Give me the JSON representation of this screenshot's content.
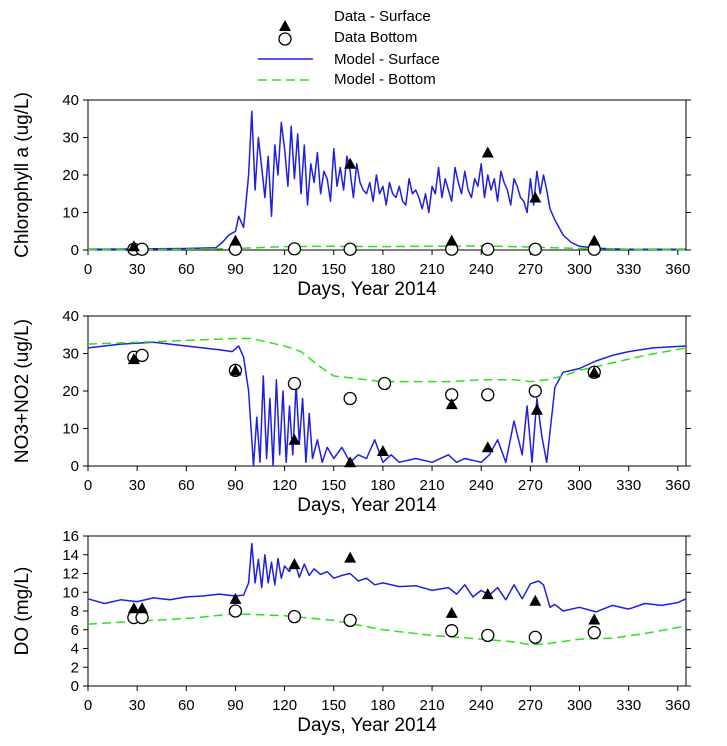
{
  "legend": {
    "placement": "top-center",
    "items": [
      {
        "key": "data_surface",
        "label": "Data - Surface",
        "symbol": "filled-triangle"
      },
      {
        "key": "data_bottom",
        "label": "Data Bottom",
        "symbol": "open-circle"
      },
      {
        "key": "model_surface",
        "label": "Model - Surface",
        "symbol": "solid-line"
      },
      {
        "key": "model_bottom",
        "label": "Model - Bottom",
        "symbol": "dashed-line"
      }
    ]
  },
  "colors": {
    "model_surface": "#1f1fe0",
    "model_bottom": "#33dd22",
    "data_marker": "#000000",
    "axis": "#000000"
  },
  "chart_data": [
    {
      "id": "chl",
      "type": "scatter+line",
      "xlabel": "Days, Year 2014",
      "ylabel": "Chlorophyll a (ug/L)",
      "xlim": [
        0,
        365
      ],
      "ylim": [
        0,
        40
      ],
      "xticks": [
        "0",
        "30",
        "60",
        "90",
        "120",
        "150",
        "180",
        "210",
        "240",
        "270",
        "300",
        "330",
        "360"
      ],
      "yticks": [
        "0",
        "10",
        "20",
        "30",
        "40"
      ],
      "grid": false,
      "series": [
        {
          "key": "data_surface",
          "name": "Data - Surface",
          "x": [
            28,
            90,
            160,
            222,
            244,
            273,
            309
          ],
          "y": [
            1,
            2.5,
            23,
            2.5,
            26,
            14,
            2.5
          ]
        },
        {
          "key": "data_bottom",
          "name": "Data Bottom",
          "x": [
            28,
            33,
            90,
            126,
            160,
            222,
            244,
            273,
            309
          ],
          "y": [
            0.2,
            0.2,
            0.2,
            0.3,
            0.2,
            0.2,
            0.2,
            0.2,
            0.2
          ]
        },
        {
          "key": "model_surface",
          "name": "Model - Surface",
          "style": "line",
          "x": [
            0,
            30,
            60,
            78,
            82,
            86,
            90,
            92,
            95,
            98,
            100,
            102,
            104,
            106,
            108,
            110,
            112,
            114,
            116,
            118,
            120,
            122,
            124,
            126,
            128,
            130,
            132,
            134,
            136,
            138,
            140,
            142,
            144,
            146,
            148,
            150,
            152,
            154,
            156,
            158,
            160,
            162,
            164,
            166,
            168,
            170,
            172,
            174,
            176,
            178,
            180,
            182,
            184,
            186,
            188,
            190,
            192,
            194,
            196,
            198,
            200,
            202,
            204,
            206,
            208,
            210,
            212,
            214,
            216,
            218,
            220,
            222,
            224,
            226,
            228,
            230,
            232,
            234,
            236,
            238,
            240,
            242,
            244,
            246,
            248,
            250,
            252,
            254,
            256,
            258,
            260,
            262,
            264,
            266,
            268,
            270,
            272,
            274,
            276,
            278,
            280,
            282,
            285,
            290,
            295,
            300,
            310,
            320,
            330,
            365
          ],
          "y": [
            0.2,
            0.3,
            0.4,
            0.6,
            2,
            4,
            5,
            9,
            6,
            20,
            37,
            16,
            30,
            22,
            14,
            25,
            9,
            28,
            20,
            34,
            27,
            17,
            33,
            19,
            31,
            15,
            28,
            12,
            23,
            18,
            26,
            15,
            21,
            19,
            13,
            27,
            17,
            22,
            16,
            25,
            21,
            14,
            23,
            18,
            16,
            15,
            18,
            13,
            20,
            15,
            17,
            12,
            18,
            15,
            14,
            17,
            13,
            12,
            19,
            15,
            16,
            14,
            11,
            15,
            10,
            17,
            15,
            22,
            14,
            19,
            16,
            13,
            22,
            18,
            15,
            21,
            16,
            14,
            19,
            17,
            23,
            14,
            20,
            16,
            19,
            13,
            21,
            18,
            16,
            12,
            19,
            17,
            14,
            13,
            10,
            19,
            12,
            21,
            15,
            20,
            16,
            11,
            8,
            4,
            2,
            1,
            0.5,
            0.3,
            0.2,
            0.2
          ]
        },
        {
          "key": "model_bottom",
          "name": "Model - Bottom",
          "style": "dashed",
          "x": [
            0,
            60,
            90,
            120,
            150,
            180,
            210,
            240,
            270,
            300,
            330,
            365
          ],
          "y": [
            0.1,
            0.2,
            0.4,
            0.9,
            1.0,
            0.9,
            1.0,
            1.1,
            0.8,
            0.4,
            0.2,
            0.1
          ]
        }
      ]
    },
    {
      "id": "no3",
      "type": "scatter+line",
      "xlabel": "Days, Year 2014",
      "ylabel": "NO3+NO2 (ug/L)",
      "xlim": [
        0,
        365
      ],
      "ylim": [
        0,
        40
      ],
      "xticks": [
        "0",
        "30",
        "60",
        "90",
        "120",
        "150",
        "180",
        "210",
        "240",
        "270",
        "300",
        "330",
        "360"
      ],
      "yticks": [
        "0",
        "10",
        "20",
        "30",
        "40"
      ],
      "grid": false,
      "series": [
        {
          "key": "data_surface",
          "name": "Data - Surface",
          "x": [
            28,
            90,
            126,
            160,
            180,
            222,
            244,
            274,
            309
          ],
          "y": [
            28.5,
            25.5,
            7,
            1,
            4,
            16.5,
            5,
            15,
            25
          ]
        },
        {
          "key": "data_bottom",
          "name": "Data Bottom",
          "x": [
            28,
            33,
            90,
            126,
            160,
            181,
            222,
            244,
            273,
            309
          ],
          "y": [
            29,
            29.5,
            25.5,
            22,
            18,
            22,
            19,
            19,
            20,
            25
          ]
        },
        {
          "key": "model_surface",
          "name": "Model - Surface",
          "style": "line",
          "x": [
            0,
            20,
            40,
            60,
            80,
            88,
            92,
            95,
            98,
            101,
            103,
            105,
            107,
            109,
            111,
            113,
            115,
            117,
            119,
            121,
            123,
            125,
            127,
            129,
            131,
            133,
            135,
            137,
            140,
            143,
            146,
            150,
            155,
            160,
            165,
            170,
            175,
            180,
            185,
            190,
            200,
            210,
            220,
            225,
            230,
            240,
            245,
            250,
            255,
            260,
            265,
            268,
            271,
            274,
            277,
            280,
            285,
            290,
            300,
            310,
            320,
            330,
            345,
            365
          ],
          "y": [
            31.5,
            32.5,
            33,
            32,
            31,
            30.5,
            32,
            29,
            20,
            0,
            13,
            1,
            24,
            2,
            18,
            0,
            23,
            3,
            20,
            1,
            16,
            3,
            22,
            6,
            18,
            1,
            14,
            2,
            7,
            1,
            5,
            2,
            5,
            1,
            3,
            2,
            7,
            1,
            3,
            1,
            2,
            1,
            3,
            1,
            2,
            1,
            3,
            7,
            1,
            12,
            3,
            16,
            1,
            18,
            8,
            1,
            21,
            25,
            26,
            28,
            29.5,
            30.5,
            31.5,
            32
          ]
        },
        {
          "key": "model_bottom",
          "name": "Model - Bottom",
          "style": "dashed",
          "x": [
            0,
            30,
            60,
            90,
            100,
            110,
            120,
            130,
            140,
            150,
            160,
            180,
            200,
            220,
            240,
            260,
            270,
            280,
            290,
            300,
            320,
            340,
            365
          ],
          "y": [
            32.5,
            33,
            33.5,
            34,
            34,
            33,
            32,
            30.5,
            27,
            24,
            23.5,
            22.5,
            22.5,
            22.5,
            23,
            23,
            22.5,
            23,
            24,
            25.5,
            27.5,
            29.5,
            31.5
          ]
        }
      ]
    },
    {
      "id": "do",
      "type": "scatter+line",
      "xlabel": "Days, Year 2014",
      "ylabel": "DO (mg/L)",
      "xlim": [
        0,
        365
      ],
      "ylim": [
        0,
        16
      ],
      "xticks": [
        "0",
        "30",
        "60",
        "90",
        "120",
        "150",
        "180",
        "210",
        "240",
        "270",
        "300",
        "330",
        "360"
      ],
      "yticks": [
        "0",
        "2",
        "4",
        "6",
        "8",
        "10",
        "12",
        "14",
        "16"
      ],
      "grid": false,
      "series": [
        {
          "key": "data_surface",
          "name": "Data - Surface",
          "x": [
            28,
            33,
            90,
            126,
            160,
            222,
            244,
            273,
            309
          ],
          "y": [
            8.3,
            8.3,
            9.3,
            13,
            13.7,
            7.8,
            9.8,
            9.1,
            7.1
          ]
        },
        {
          "key": "data_bottom",
          "name": "Data Bottom",
          "x": [
            28,
            33,
            90,
            126,
            160,
            222,
            244,
            273,
            309
          ],
          "y": [
            7.3,
            7.3,
            8.0,
            7.4,
            7.0,
            5.9,
            5.4,
            5.2,
            5.7
          ]
        },
        {
          "key": "model_surface",
          "name": "Model - Surface",
          "style": "line",
          "x": [
            0,
            10,
            20,
            30,
            40,
            50,
            60,
            70,
            80,
            90,
            95,
            98,
            100,
            102,
            104,
            106,
            108,
            110,
            112,
            114,
            116,
            118,
            120,
            123,
            126,
            129,
            132,
            135,
            138,
            142,
            146,
            150,
            155,
            160,
            165,
            170,
            175,
            180,
            190,
            200,
            210,
            220,
            225,
            230,
            235,
            240,
            245,
            250,
            255,
            260,
            265,
            270,
            275,
            278,
            282,
            285,
            290,
            300,
            310,
            320,
            330,
            340,
            350,
            360,
            365
          ],
          "y": [
            9.3,
            8.8,
            9.2,
            9.0,
            9.4,
            9.2,
            9.5,
            9.6,
            9.8,
            9.6,
            9.7,
            11,
            15.2,
            11,
            13.5,
            10.5,
            14,
            11,
            13.2,
            10.8,
            13.6,
            11.5,
            12.8,
            12.2,
            13.4,
            11.6,
            13,
            11.8,
            12.5,
            11.9,
            12.2,
            11.5,
            11.8,
            12,
            11.2,
            11.5,
            10.8,
            11,
            10.6,
            10.7,
            10.2,
            10.5,
            9.8,
            10.8,
            9.5,
            10.2,
            9.7,
            10.5,
            9.2,
            10.8,
            9.3,
            10.9,
            11.2,
            10.8,
            8.4,
            8.7,
            8.0,
            8.4,
            7.9,
            8.6,
            8.2,
            8.8,
            8.6,
            8.9,
            9.3
          ]
        },
        {
          "key": "model_bottom",
          "name": "Model - Bottom",
          "style": "dashed",
          "x": [
            0,
            30,
            60,
            90,
            120,
            150,
            180,
            210,
            240,
            260,
            270,
            280,
            300,
            320,
            340,
            365
          ],
          "y": [
            6.6,
            6.9,
            7.2,
            7.7,
            7.5,
            7.0,
            6.0,
            5.4,
            5.0,
            4.7,
            4.4,
            4.5,
            5.0,
            5.1,
            5.6,
            6.4
          ]
        }
      ]
    }
  ]
}
